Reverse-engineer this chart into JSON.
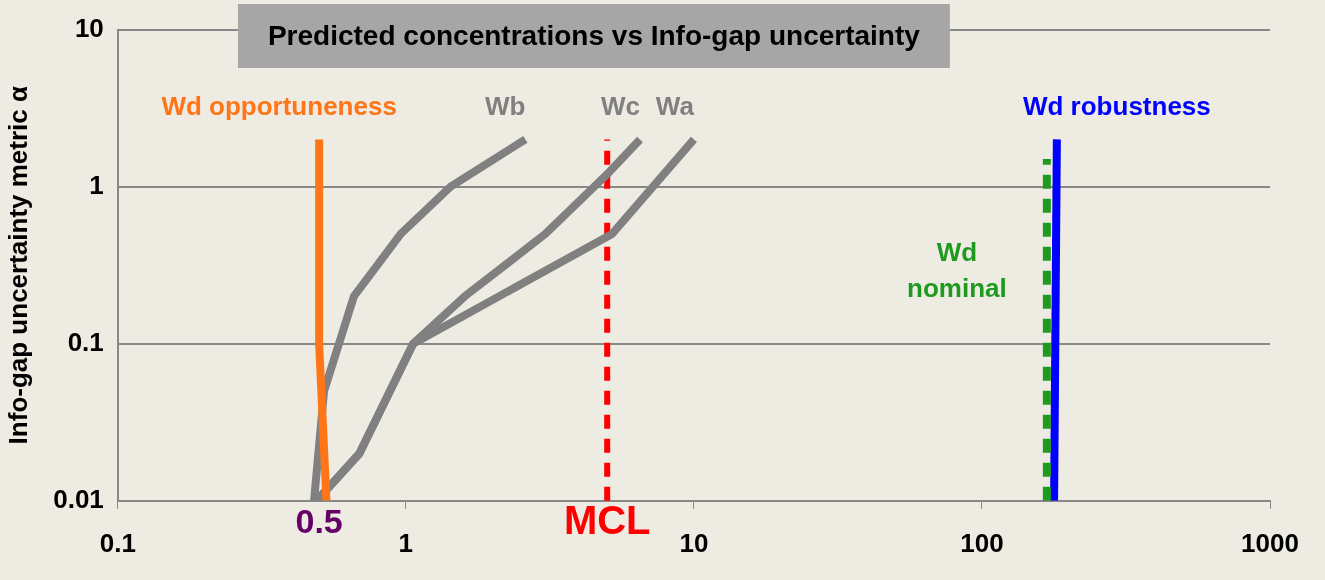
{
  "chart_data": {
    "type": "line",
    "title": "Predicted concentrations vs Info-gap uncertainty",
    "ylabel": "Info-gap uncertainty metric α",
    "log": "xy",
    "grid": "y",
    "legend": false,
    "marker": "none",
    "xlim": [
      0.1,
      1000
    ],
    "xticks": [
      0.1,
      1,
      10,
      100,
      1000
    ],
    "ylim": [
      0.01,
      10
    ],
    "yticks": [
      0.01,
      0.1,
      1,
      10
    ],
    "series": [
      {
        "name": "Wd opportuneness",
        "color": "#ff7518",
        "x": [
          0.53,
          0.5,
          0.5
        ],
        "values": [
          0.01,
          0.1,
          2
        ]
      },
      {
        "name": "Wb",
        "color": "#808080",
        "x": [
          0.48,
          0.52,
          0.66,
          0.96,
          1.43,
          2.6
        ],
        "values": [
          0.01,
          0.05,
          0.2,
          0.5,
          1,
          2
        ]
      },
      {
        "name": "Wc",
        "color": "#808080",
        "x": [
          0.49,
          0.69,
          1.06,
          1.6,
          3.05,
          5,
          6.5
        ],
        "values": [
          0.01,
          0.02,
          0.1,
          0.2,
          0.5,
          1.2,
          2
        ]
      },
      {
        "name": "Wa",
        "color": "#808080",
        "x": [
          0.49,
          0.69,
          1.06,
          5.2,
          10
        ],
        "values": [
          0.01,
          0.02,
          0.1,
          0.5,
          2
        ]
      },
      {
        "name": "Wd nominal",
        "color": "#1e9a1e",
        "line_style": "dashed",
        "x": [
          168,
          168
        ],
        "values": [
          0.01,
          1.5
        ]
      },
      {
        "name": "Wd robustness",
        "color": "#0000ff",
        "x": [
          178,
          182
        ],
        "values": [
          0.01,
          2
        ]
      }
    ],
    "ref_lines": [
      {
        "axis": "x",
        "value": 5,
        "label": "MCL",
        "color": "#ff0000",
        "line_style": "dashed"
      }
    ],
    "annotations": [
      {
        "text": "0.5",
        "x": 0.5,
        "y": 0.01
      }
    ]
  }
}
